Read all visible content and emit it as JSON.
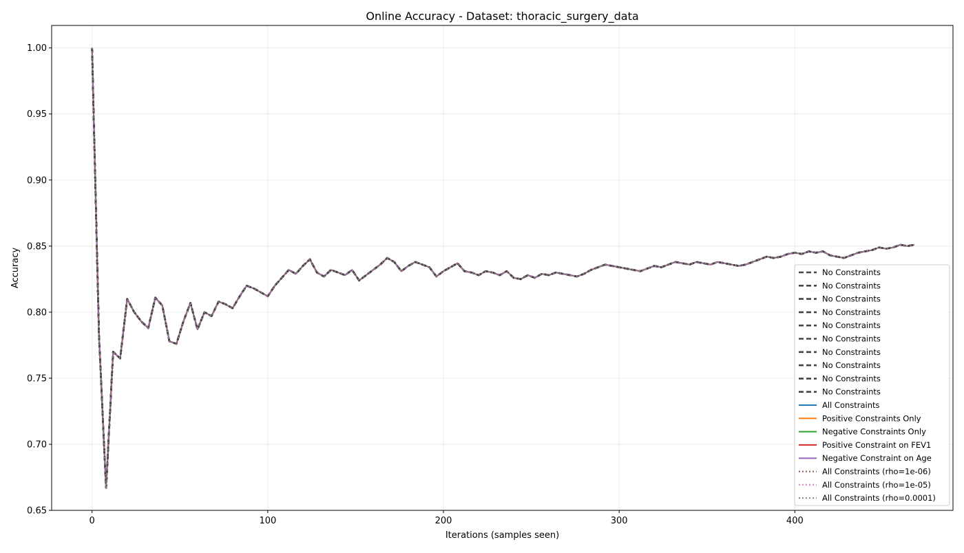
{
  "chart_data": {
    "type": "line",
    "title": "Online Accuracy - Dataset: thoracic_surgery_data",
    "xlabel": "Iterations (samples seen)",
    "ylabel": "Accuracy",
    "xlim": [
      -23,
      490
    ],
    "ylim": [
      0.65,
      1.017
    ],
    "xticks": [
      0,
      100,
      200,
      300,
      400
    ],
    "yticks": [
      0.65,
      0.7,
      0.75,
      0.8,
      0.85,
      0.9,
      0.95,
      1.0
    ],
    "xtick_labels": [
      "0",
      "100",
      "200",
      "300",
      "400"
    ],
    "ytick_labels": [
      "0.65",
      "0.70",
      "0.75",
      "0.80",
      "0.85",
      "0.90",
      "0.95",
      "1.00"
    ],
    "grid": true,
    "legend_position": "lower-right",
    "curve": {
      "x": [
        0,
        4,
        8,
        12,
        16,
        20,
        24,
        28,
        32,
        36,
        40,
        44,
        48,
        52,
        56,
        60,
        64,
        68,
        72,
        76,
        80,
        84,
        88,
        92,
        96,
        100,
        104,
        108,
        112,
        116,
        120,
        124,
        128,
        132,
        136,
        140,
        144,
        148,
        152,
        156,
        160,
        164,
        168,
        172,
        176,
        180,
        184,
        188,
        192,
        196,
        200,
        204,
        208,
        212,
        216,
        220,
        224,
        228,
        232,
        236,
        240,
        244,
        248,
        252,
        256,
        260,
        264,
        268,
        272,
        276,
        280,
        284,
        288,
        292,
        296,
        300,
        304,
        308,
        312,
        316,
        320,
        324,
        328,
        332,
        336,
        340,
        344,
        348,
        352,
        356,
        360,
        364,
        368,
        372,
        376,
        380,
        384,
        388,
        392,
        396,
        400,
        404,
        408,
        412,
        416,
        420,
        424,
        428,
        432,
        436,
        440,
        444,
        448,
        452,
        456,
        460,
        464,
        468
      ],
      "y": [
        1.0,
        0.78,
        0.667,
        0.77,
        0.765,
        0.81,
        0.8,
        0.793,
        0.788,
        0.811,
        0.805,
        0.778,
        0.776,
        0.793,
        0.807,
        0.787,
        0.8,
        0.797,
        0.808,
        0.806,
        0.803,
        0.812,
        0.82,
        0.818,
        0.815,
        0.812,
        0.82,
        0.826,
        0.832,
        0.829,
        0.835,
        0.84,
        0.83,
        0.827,
        0.832,
        0.83,
        0.828,
        0.832,
        0.824,
        0.828,
        0.832,
        0.836,
        0.841,
        0.838,
        0.831,
        0.835,
        0.838,
        0.836,
        0.834,
        0.827,
        0.831,
        0.834,
        0.837,
        0.831,
        0.83,
        0.828,
        0.831,
        0.83,
        0.828,
        0.831,
        0.826,
        0.825,
        0.828,
        0.826,
        0.829,
        0.828,
        0.83,
        0.829,
        0.828,
        0.827,
        0.829,
        0.832,
        0.834,
        0.836,
        0.835,
        0.834,
        0.833,
        0.832,
        0.831,
        0.833,
        0.835,
        0.834,
        0.836,
        0.838,
        0.837,
        0.836,
        0.838,
        0.837,
        0.836,
        0.838,
        0.837,
        0.836,
        0.835,
        0.836,
        0.838,
        0.84,
        0.842,
        0.841,
        0.842,
        0.844,
        0.845,
        0.844,
        0.846,
        0.845,
        0.846,
        0.843,
        0.842,
        0.841,
        0.843,
        0.845,
        0.846,
        0.847,
        0.849,
        0.848,
        0.849,
        0.851,
        0.85,
        0.851
      ]
    },
    "series": [
      {
        "name": "No Constraints",
        "color": "#444444",
        "dash": "dashed"
      },
      {
        "name": "No Constraints",
        "color": "#444444",
        "dash": "dashed"
      },
      {
        "name": "No Constraints",
        "color": "#444444",
        "dash": "dashed"
      },
      {
        "name": "No Constraints",
        "color": "#444444",
        "dash": "dashed"
      },
      {
        "name": "No Constraints",
        "color": "#444444",
        "dash": "dashed"
      },
      {
        "name": "No Constraints",
        "color": "#444444",
        "dash": "dashed"
      },
      {
        "name": "No Constraints",
        "color": "#444444",
        "dash": "dashed"
      },
      {
        "name": "No Constraints",
        "color": "#444444",
        "dash": "dashed"
      },
      {
        "name": "No Constraints",
        "color": "#444444",
        "dash": "dashed"
      },
      {
        "name": "No Constraints",
        "color": "#444444",
        "dash": "dashed"
      },
      {
        "name": "All Constraints",
        "color": "#1f77b4",
        "dash": "solid"
      },
      {
        "name": "Positive Constraints Only",
        "color": "#ff7f0e",
        "dash": "solid"
      },
      {
        "name": "Negative Constraints Only",
        "color": "#2ca02c",
        "dash": "solid"
      },
      {
        "name": "Positive Constraint on FEV1",
        "color": "#d62728",
        "dash": "solid"
      },
      {
        "name": "Negative Constraint on Age",
        "color": "#9467bd",
        "dash": "solid"
      },
      {
        "name": "All Constraints (rho=1e-06)",
        "color": "#8c564b",
        "dash": "dotted"
      },
      {
        "name": "All Constraints (rho=1e-05)",
        "color": "#e377c2",
        "dash": "dotted"
      },
      {
        "name": "All Constraints (rho=0.0001)",
        "color": "#7f7f7f",
        "dash": "dotted"
      }
    ]
  }
}
